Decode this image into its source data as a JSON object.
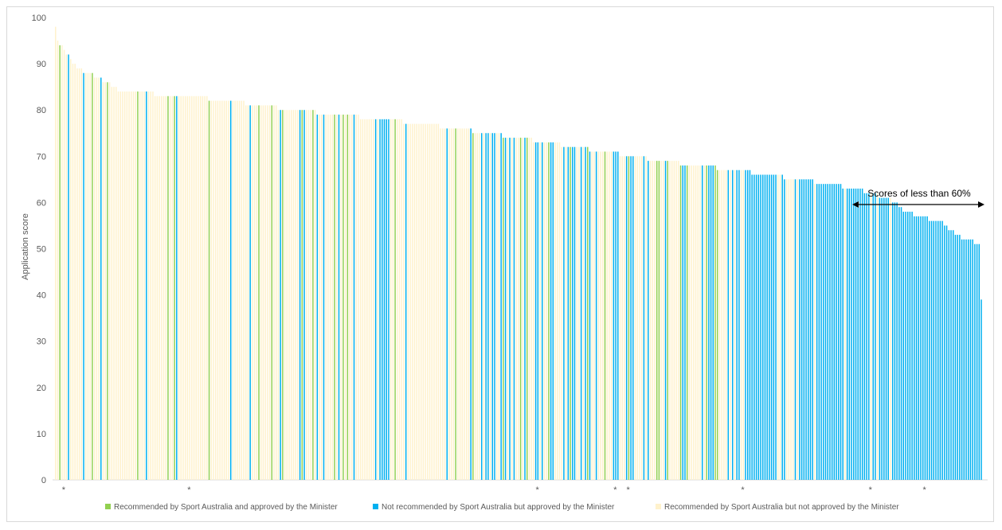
{
  "chart_data": {
    "type": "bar",
    "ylabel": "Application score",
    "ylim": [
      0,
      100
    ],
    "y_ticks": [
      "0",
      "10",
      "20",
      "30",
      "40",
      "50",
      "60",
      "70",
      "80",
      "90",
      "100"
    ],
    "grid": false,
    "legend_position": "bottom",
    "series": [
      {
        "name": "Recommended by Sport Australia and approved by the Minister",
        "color": "#92d050"
      },
      {
        "name": "Not recommended by Sport Australia but approved by the Minister",
        "color": "#00b0f0"
      },
      {
        "name": "Recommended by Sport Australia but not approved by the Minister",
        "color": "#fff2cc"
      }
    ],
    "annotation": {
      "text": "Scores of less than 60%",
      "from_score": 60
    },
    "marker_symbol": "*"
  }
}
